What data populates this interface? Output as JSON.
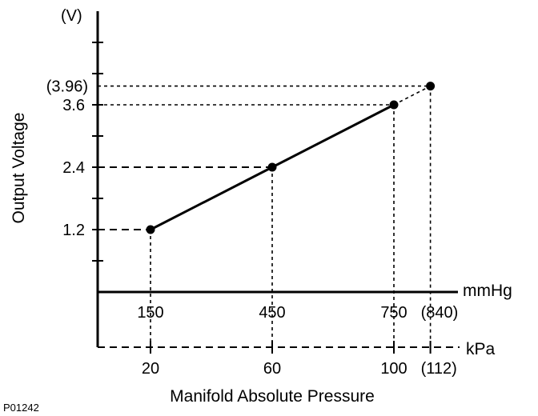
{
  "chart_data": {
    "type": "line",
    "ylabel": "Output Voltage",
    "yunit": "(V)",
    "xlabel": "Manifold Absolute Pressure",
    "x_units": [
      "mmHg",
      "kPa"
    ],
    "x_mmhg": [
      150,
      450,
      750,
      840
    ],
    "x_kpa": [
      20,
      60,
      100,
      112
    ],
    "y": [
      1.2,
      2.4,
      3.6,
      3.96
    ],
    "x_tick_labels_mmhg": [
      "150",
      "450",
      "750",
      "(840)"
    ],
    "x_tick_labels_kpa": [
      "20",
      "60",
      "100",
      "(112)"
    ],
    "y_tick_labels": [
      "1.2",
      "2.4",
      "3.6",
      "(3.96)"
    ],
    "ylim": [
      0,
      4.8
    ],
    "figure_code": "P01242"
  }
}
